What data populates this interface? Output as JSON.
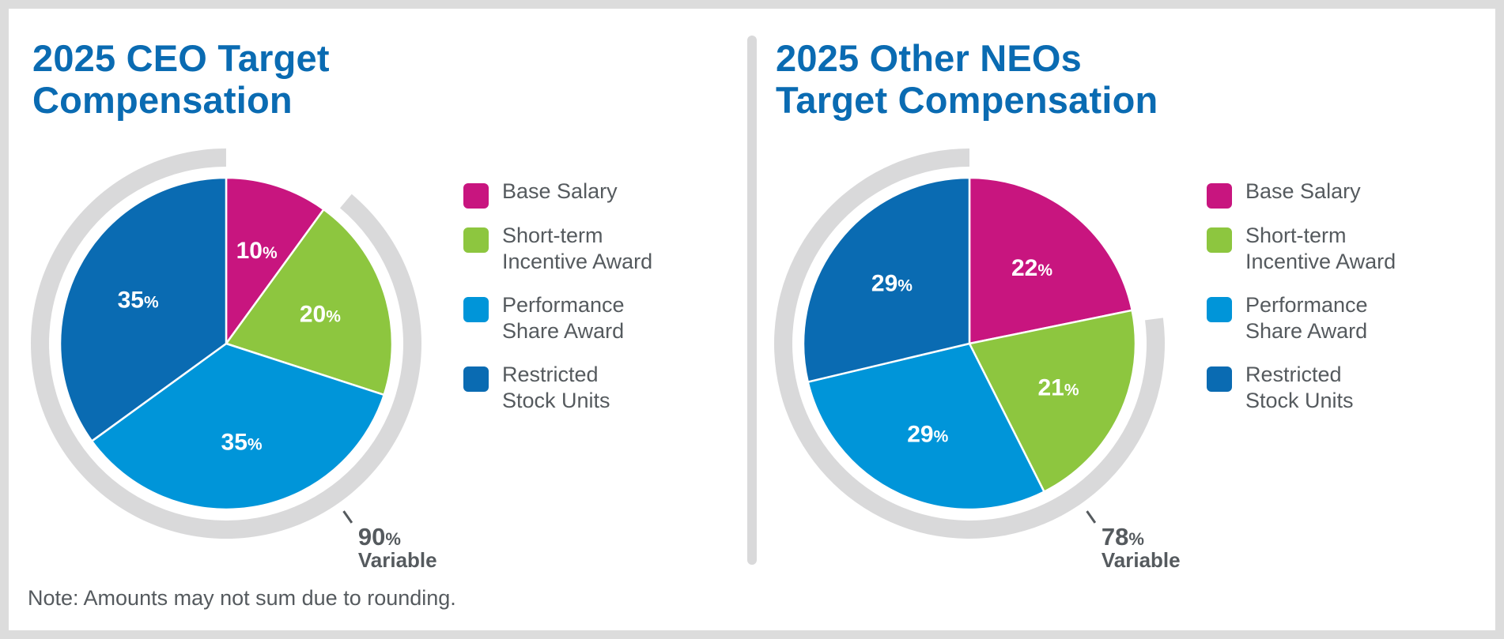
{
  "colors": {
    "base_salary": "#c8157f",
    "short_term": "#8dc63f",
    "performance": "#0095d9",
    "restricted": "#0a6bb2",
    "ring": "#d9d9da",
    "title": "#0a6bb2",
    "text": "#555a5e"
  },
  "chart_data": [
    {
      "type": "pie",
      "title_line1": "2025 CEO Target",
      "title_line2": "Compensation",
      "categories": [
        "Base Salary",
        "Short-term Incentive Award",
        "Performance Share Award",
        "Restricted Stock Units"
      ],
      "values": [
        10,
        20,
        35,
        35
      ],
      "value_labels": [
        "10",
        "20",
        "35",
        "35"
      ],
      "percent_symbol": "%",
      "variable_value": "90",
      "variable_label": "Variable",
      "legend_position": "right"
    },
    {
      "type": "pie",
      "title_line1": "2025 Other NEOs",
      "title_line2": "Target Compensation",
      "categories": [
        "Base Salary",
        "Short-term Incentive Award",
        "Performance Share Award",
        "Restricted Stock Units"
      ],
      "values": [
        22,
        21,
        29,
        29
      ],
      "value_labels": [
        "22",
        "21",
        "29",
        "29"
      ],
      "percent_symbol": "%",
      "variable_value": "78",
      "variable_label": "Variable",
      "legend_position": "right"
    }
  ],
  "legend": [
    {
      "key": "base_salary",
      "label": "Base Salary"
    },
    {
      "key": "short_term",
      "label": "Short-term\nIncentive Award"
    },
    {
      "key": "performance",
      "label": "Performance\n Share Award"
    },
    {
      "key": "restricted",
      "label": "Restricted\nStock Units"
    }
  ],
  "footnote": "Note: Amounts may not sum due to rounding."
}
